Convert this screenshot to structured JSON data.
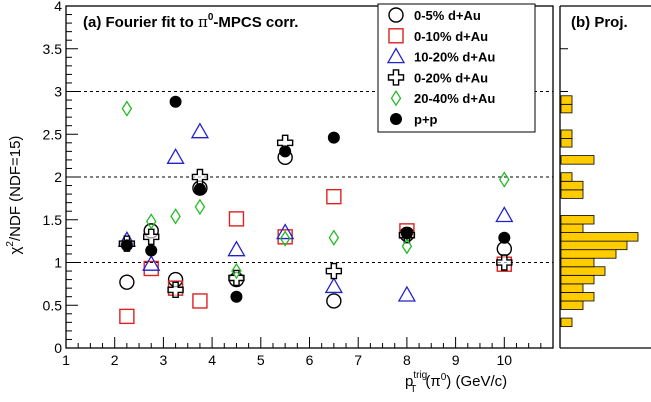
{
  "chart_data": [
    {
      "type": "scatter",
      "panel": "(a)",
      "title": "(a) Fourier fit to π⁰-MPCS corr.",
      "title_parts": {
        "prefix": "(a) Fourier fit to ",
        "symbol": "π",
        "superscript": "0",
        "suffix": "-MPCS corr."
      },
      "xlabel": "p_T^trig(π^0) (GeV/c)",
      "xlabel_parts": {
        "p": "p",
        "sub": "T",
        "sup": "trig",
        "mid": "(π",
        "mid_sup": "0",
        "tail": ") (GeV/c)"
      },
      "ylabel": "χ²/NDF (NDF=15)",
      "ylabel_parts": {
        "chi": "χ",
        "sup": "2",
        "rest": "/NDF (NDF=15)"
      },
      "xlim": [
        1,
        11
      ],
      "ylim": [
        0,
        4
      ],
      "x_ticks": [
        "1",
        "2",
        "3",
        "4",
        "5",
        "6",
        "7",
        "8",
        "9",
        "10"
      ],
      "y_ticks": [
        "0",
        "0.5",
        "1",
        "1.5",
        "2",
        "2.5",
        "3",
        "3.5",
        "4"
      ],
      "reference_lines": [
        1,
        2,
        3
      ],
      "legend_placement": "top-right",
      "series": [
        {
          "name": "0-5% d+Au",
          "marker": "open-circle",
          "color": "#000000",
          "points": [
            [
              2.25,
              0.77
            ],
            [
              2.75,
              1.37
            ],
            [
              3.25,
              0.8
            ],
            [
              3.75,
              1.87
            ],
            [
              4.5,
              0.8
            ],
            [
              5.5,
              2.23
            ],
            [
              6.5,
              0.55
            ],
            [
              8.0,
              1.33
            ],
            [
              10.0,
              1.16
            ]
          ]
        },
        {
          "name": "0-10% d+Au",
          "marker": "open-square",
          "color": "#dd2222",
          "points": [
            [
              2.25,
              0.37
            ],
            [
              2.75,
              0.93
            ],
            [
              3.25,
              0.7
            ],
            [
              3.75,
              0.55
            ],
            [
              4.5,
              1.51
            ],
            [
              5.5,
              1.3
            ],
            [
              6.5,
              1.77
            ],
            [
              8.0,
              1.37
            ],
            [
              10.0,
              0.98
            ]
          ]
        },
        {
          "name": "10-20% d+Au",
          "marker": "open-triangle",
          "color": "#2222cc",
          "points": [
            [
              2.25,
              1.26
            ],
            [
              2.75,
              0.98
            ],
            [
              3.25,
              2.23
            ],
            [
              3.75,
              2.53
            ],
            [
              4.5,
              1.15
            ],
            [
              5.5,
              1.35
            ],
            [
              6.5,
              0.72
            ],
            [
              8.0,
              0.62
            ],
            [
              10.0,
              1.55
            ]
          ]
        },
        {
          "name": "0-20% d+Au",
          "marker": "open-cross",
          "color": "#000000",
          "points": [
            [
              2.25,
              1.22
            ],
            [
              2.75,
              1.3
            ],
            [
              3.25,
              0.68
            ],
            [
              3.75,
              2.0
            ],
            [
              4.5,
              0.82
            ],
            [
              5.5,
              2.4
            ],
            [
              6.5,
              0.9
            ],
            [
              8.0,
              1.32
            ],
            [
              10.0,
              1.0
            ]
          ]
        },
        {
          "name": "20-40% d+Au",
          "marker": "open-diamond",
          "color": "#22bb22",
          "points": [
            [
              2.25,
              2.8
            ],
            [
              2.75,
              1.48
            ],
            [
              3.25,
              1.54
            ],
            [
              3.75,
              1.65
            ],
            [
              4.5,
              0.9
            ],
            [
              5.5,
              1.28
            ],
            [
              6.5,
              1.29
            ],
            [
              8.0,
              1.19
            ],
            [
              10.0,
              1.97
            ]
          ]
        },
        {
          "name": "p+p",
          "marker": "filled-circle",
          "color": "#000000",
          "points": [
            [
              2.25,
              1.2
            ],
            [
              2.75,
              1.14
            ],
            [
              3.25,
              2.88
            ],
            [
              3.75,
              1.86
            ],
            [
              4.5,
              0.6
            ],
            [
              5.5,
              2.3
            ],
            [
              6.5,
              2.46
            ],
            [
              8.0,
              1.34
            ],
            [
              10.0,
              1.29
            ]
          ]
        }
      ]
    },
    {
      "type": "bar",
      "orientation": "horizontal",
      "panel": "(b)",
      "title": "(b) Proj.",
      "color": "#ffcc00",
      "bin_width": 0.1,
      "bins": [
        {
          "y": 0.3,
          "count": 1
        },
        {
          "y": 0.5,
          "count": 2
        },
        {
          "y": 0.6,
          "count": 3
        },
        {
          "y": 0.7,
          "count": 2
        },
        {
          "y": 0.8,
          "count": 3
        },
        {
          "y": 0.9,
          "count": 4
        },
        {
          "y": 1.0,
          "count": 3
        },
        {
          "y": 1.1,
          "count": 5
        },
        {
          "y": 1.2,
          "count": 6
        },
        {
          "y": 1.3,
          "count": 7
        },
        {
          "y": 1.4,
          "count": 2
        },
        {
          "y": 1.5,
          "count": 3
        },
        {
          "y": 1.8,
          "count": 2
        },
        {
          "y": 1.9,
          "count": 2
        },
        {
          "y": 2.0,
          "count": 1
        },
        {
          "y": 2.2,
          "count": 3
        },
        {
          "y": 2.4,
          "count": 1
        },
        {
          "y": 2.5,
          "count": 1
        },
        {
          "y": 2.8,
          "count": 1
        },
        {
          "y": 2.9,
          "count": 1
        }
      ],
      "xlim": [
        0,
        8
      ]
    }
  ]
}
